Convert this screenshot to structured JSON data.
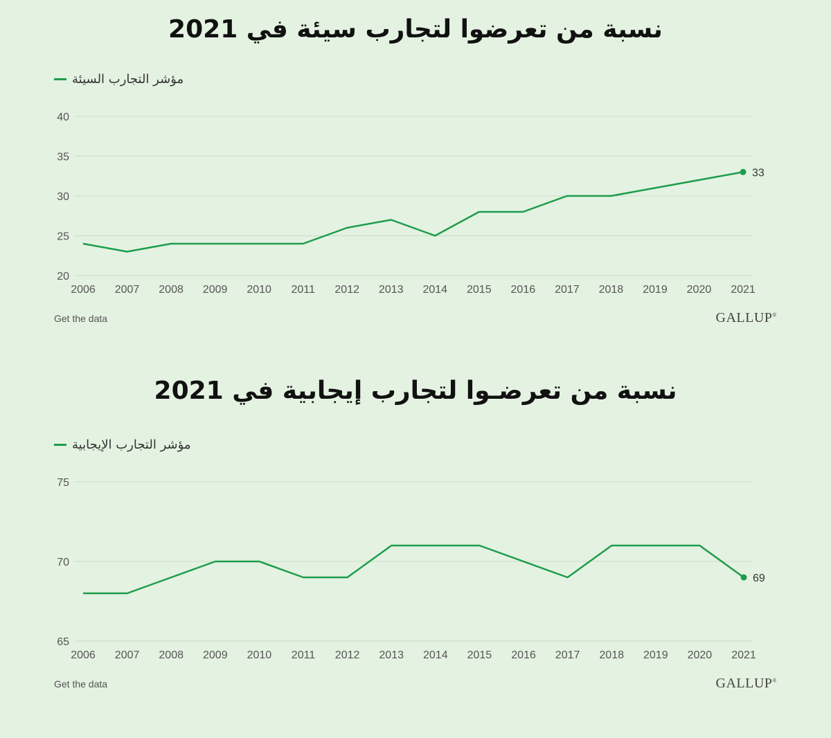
{
  "colors": {
    "line": "#1c9d4c",
    "grid": "#c9dcc6",
    "background": "#e4f2e1"
  },
  "footer": {
    "link_label": "Get the data",
    "logo": "GALLUP"
  },
  "chart_data": [
    {
      "type": "line",
      "title": "نسبة من تعرضوا لتجارب سيئة في 2021",
      "x": [
        "2006",
        "2007",
        "2008",
        "2009",
        "2010",
        "2011",
        "2012",
        "2013",
        "2014",
        "2015",
        "2016",
        "2017",
        "2018",
        "2019",
        "2020",
        "2021"
      ],
      "series": [
        {
          "name": "مؤشر التجارب السيئة",
          "values": [
            24,
            23,
            24,
            24,
            24,
            24,
            26,
            27,
            25,
            28,
            28,
            30,
            30,
            31,
            32,
            33
          ]
        }
      ],
      "end_label": "33",
      "ylim": [
        20,
        40
      ],
      "yticks": [
        20,
        25,
        30,
        35,
        40
      ],
      "grid": true,
      "legend": "top-left"
    },
    {
      "type": "line",
      "title": "نسبة من تعرضـوا لتجارب إيجابية في 2021",
      "x": [
        "2006",
        "2007",
        "2008",
        "2009",
        "2010",
        "2011",
        "2012",
        "2013",
        "2014",
        "2015",
        "2016",
        "2017",
        "2018",
        "2019",
        "2020",
        "2021"
      ],
      "series": [
        {
          "name": "مؤشر التجارب الإيجابية",
          "values": [
            68,
            68,
            69,
            70,
            70,
            69,
            69,
            71,
            71,
            71,
            70,
            69,
            71,
            71,
            71,
            69
          ]
        }
      ],
      "end_label": "69",
      "ylim": [
        65,
        75
      ],
      "yticks": [
        65,
        70,
        75
      ],
      "grid": true,
      "legend": "top-left"
    }
  ]
}
